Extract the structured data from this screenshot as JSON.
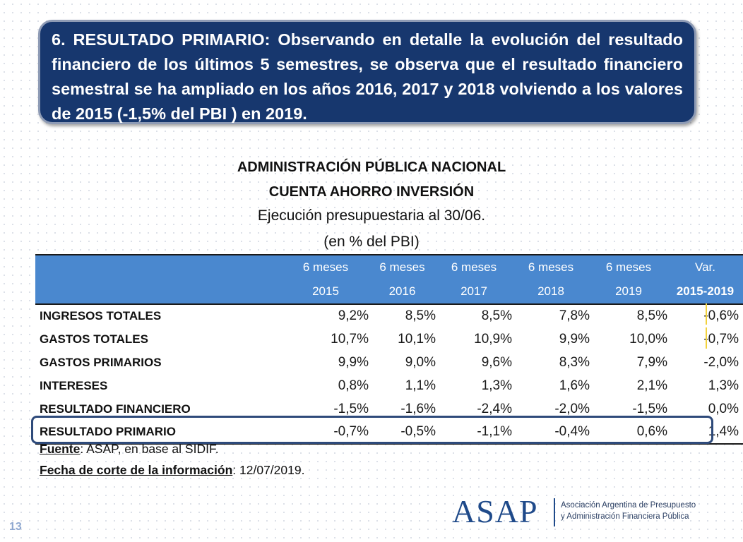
{
  "banner": {
    "text": "6. RESULTADO PRIMARIO: Observando en detalle la evolución del resultado financiero de los últimos 5 semestres, se observa que el resultado financiero semestral se ha ampliado en los años 2016, 2017 y 2018 volviendo a los valores de 2015 (-1,5% del PBI ) en 2019."
  },
  "titles": {
    "line1": "ADMINISTRACIÓN PÚBLICA NACIONAL",
    "line2": "CUENTA AHORRO INVERSIÓN",
    "line3": "Ejecución presupuestaria al 30/06.",
    "line4": "(en % del PBI)"
  },
  "table": {
    "header_top": [
      "6 meses",
      "6 meses",
      "6 meses",
      "6 meses",
      "6 meses",
      "Var."
    ],
    "header_bottom": [
      "2015",
      "2016",
      "2017",
      "2018",
      "2019",
      "2015-2019"
    ],
    "rows": [
      {
        "label": "INGRESOS TOTALES",
        "values": [
          "9,2%",
          "8,5%",
          "8,5%",
          "7,8%",
          "8,5%",
          "-0,6%"
        ]
      },
      {
        "label": "GASTOS TOTALES",
        "values": [
          "10,7%",
          "10,1%",
          "10,9%",
          "9,9%",
          "10,0%",
          "-0,7%"
        ]
      },
      {
        "label": "GASTOS PRIMARIOS",
        "values": [
          "9,9%",
          "9,0%",
          "9,6%",
          "8,3%",
          "7,9%",
          "-2,0%"
        ]
      },
      {
        "label": "INTERESES",
        "values": [
          "0,8%",
          "1,1%",
          "1,3%",
          "1,6%",
          "2,1%",
          "1,3%"
        ]
      },
      {
        "label": "RESULTADO FINANCIERO",
        "values": [
          "-1,5%",
          "-1,6%",
          "-2,4%",
          "-2,0%",
          "-1,5%",
          "0,0%"
        ]
      },
      {
        "label": "RESULTADO PRIMARIO",
        "values": [
          "-0,7%",
          "-0,5%",
          "-1,1%",
          "-0,4%",
          "0,6%",
          "1,4%"
        ]
      }
    ]
  },
  "notes": {
    "source_label": "Fuente",
    "source_value": ": ASAP, en base al SIDIF.",
    "date_label": "Fecha de corte de la información",
    "date_value": ": 12/07/2019."
  },
  "page_number": "13",
  "logo": {
    "word": "ASAP",
    "line1": "Asociación Argentina de Presupuesto",
    "line2": "y Administración Financiera Pública"
  },
  "colors": {
    "banner_bg": "#17376e",
    "table_header": "#4a88cf",
    "highlight_box": "#2e4a7a",
    "logo": "#1f4a8a"
  }
}
